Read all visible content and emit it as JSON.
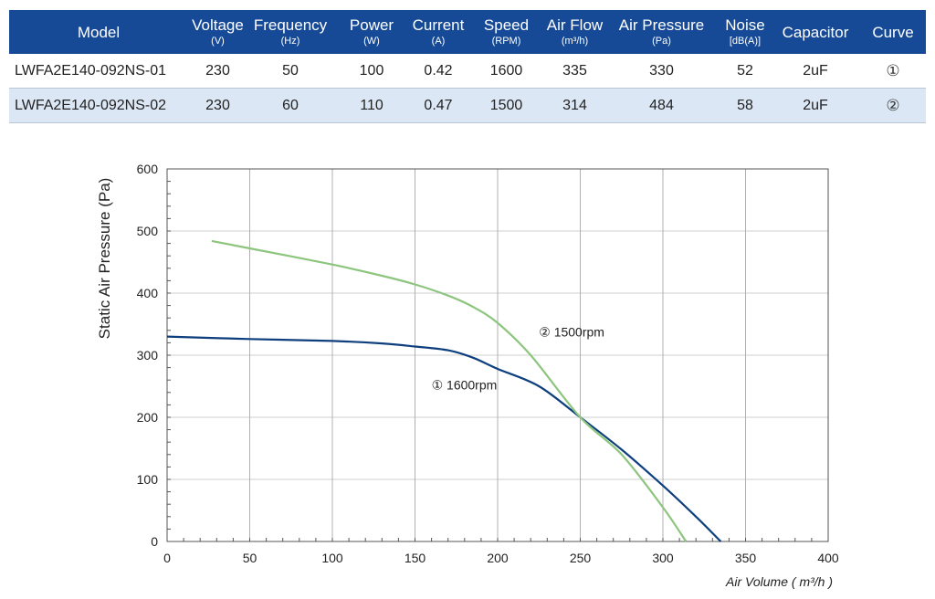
{
  "table": {
    "headers": [
      {
        "label": "Model",
        "unit": ""
      },
      {
        "label": "Voltage",
        "unit": "(V)"
      },
      {
        "label": "Frequency",
        "unit": "(Hz)"
      },
      {
        "label": "Power",
        "unit": "(W)"
      },
      {
        "label": "Current",
        "unit": "(A)"
      },
      {
        "label": "Speed",
        "unit": "(RPM)"
      },
      {
        "label": "Air Flow",
        "unit": "(m³/h)"
      },
      {
        "label": "Air Pressure",
        "unit": "(Pa)"
      },
      {
        "label": "Noise",
        "unit": "[dB(A)]"
      },
      {
        "label": "Capacitor",
        "unit": ""
      },
      {
        "label": "Curve",
        "unit": ""
      }
    ],
    "rows": [
      [
        "LWFA2E140-092NS-01",
        "230",
        "50",
        "100",
        "0.42",
        "1600",
        "335",
        "330",
        "52",
        "2uF",
        "①"
      ],
      [
        "LWFA2E140-092NS-02",
        "230",
        "60",
        "110",
        "0.47",
        "1500",
        "314",
        "484",
        "58",
        "2uF",
        "②"
      ]
    ]
  },
  "colors": {
    "header_bg": "#174a96",
    "row_alt_bg": "#dce7f5",
    "series_1": "#0d3f7e",
    "series_2": "#8dc57e",
    "grid": "#b0b0b0"
  },
  "chart_data": {
    "type": "line",
    "title": "",
    "xlabel": "Air Volume ( m³/h )",
    "ylabel": "Static Air Pressure  (Pa)",
    "xlim": [
      0,
      400
    ],
    "ylim": [
      0,
      600
    ],
    "xticks": [
      0,
      50,
      100,
      150,
      200,
      250,
      300,
      350,
      400
    ],
    "yticks": [
      0,
      100,
      200,
      300,
      400,
      500,
      600
    ],
    "grid": "vertical",
    "series": [
      {
        "name": "① 1600rpm",
        "color": "#0d3f7e",
        "x": [
          0,
          50,
          100,
          130,
          150,
          170,
          185,
          200,
          225,
          250,
          275,
          300,
          320,
          335
        ],
        "y": [
          330,
          326,
          323,
          319,
          314,
          308,
          296,
          278,
          250,
          200,
          148,
          90,
          40,
          0
        ]
      },
      {
        "name": "② 1500rpm",
        "color": "#8dc57e",
        "x": [
          27,
          50,
          100,
          130,
          150,
          170,
          185,
          200,
          220,
          250,
          275,
          300,
          314
        ],
        "y": [
          484,
          472,
          446,
          428,
          414,
          396,
          378,
          352,
          300,
          200,
          140,
          55,
          0
        ]
      }
    ],
    "annotations": [
      {
        "text": "② 1500rpm",
        "x": 225,
        "y": 330
      },
      {
        "text": "① 1600rpm",
        "x": 160,
        "y": 245
      }
    ]
  }
}
